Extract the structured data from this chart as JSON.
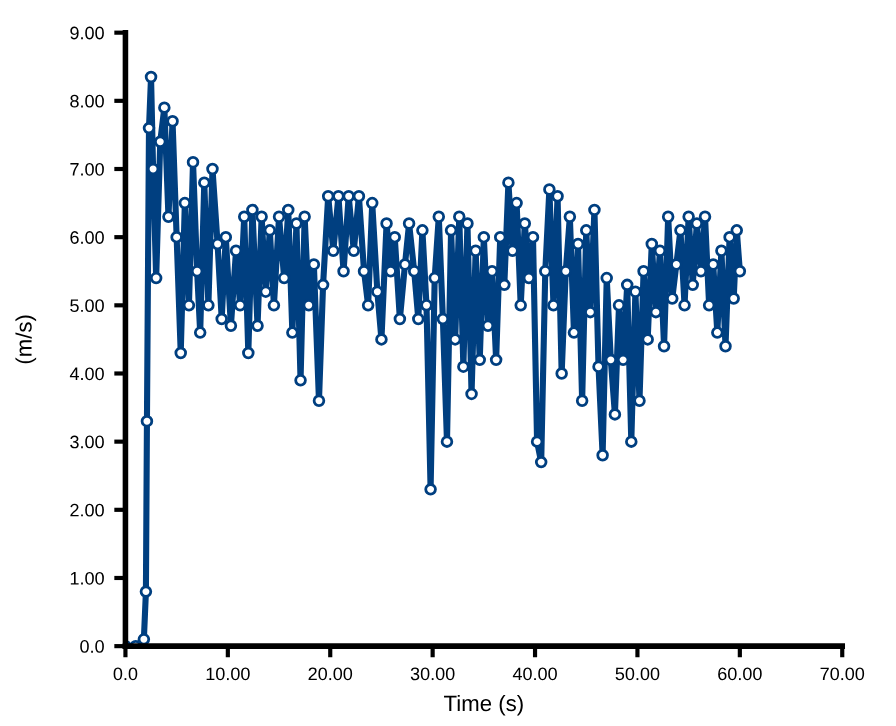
{
  "chart_data": {
    "type": "line",
    "xlabel": "Time (s)",
    "ylabel": "(m/s)",
    "xlim": [
      0,
      70
    ],
    "ylim": [
      0,
      9
    ],
    "xticks": [
      {
        "value": 0,
        "label": "0.0"
      },
      {
        "value": 10,
        "label": "10.00"
      },
      {
        "value": 20,
        "label": "20.00"
      },
      {
        "value": 30,
        "label": "30.00"
      },
      {
        "value": 40,
        "label": "40.00"
      },
      {
        "value": 50,
        "label": "50.00"
      },
      {
        "value": 60,
        "label": "60.00"
      },
      {
        "value": 70,
        "label": "70.00"
      }
    ],
    "yticks": [
      {
        "value": 0,
        "label": "0.0"
      },
      {
        "value": 1,
        "label": "1.00"
      },
      {
        "value": 2,
        "label": "2.00"
      },
      {
        "value": 3,
        "label": "3.00"
      },
      {
        "value": 4,
        "label": "4.00"
      },
      {
        "value": 5,
        "label": "5.00"
      },
      {
        "value": 6,
        "label": "6.00"
      },
      {
        "value": 7,
        "label": "7.00"
      },
      {
        "value": 8,
        "label": "8.00"
      },
      {
        "value": 9,
        "label": "9.00"
      }
    ],
    "grid": false,
    "legend": false,
    "marker": "circle",
    "line_style": "solid",
    "series": [
      {
        "color": "#003f80",
        "x": [
          0,
          1,
          1.8,
          2.0,
          2.1,
          2.3,
          2.5,
          2.7,
          3.0,
          3.4,
          3.8,
          4.2,
          4.6,
          5.0,
          5.4,
          5.8,
          6.2,
          6.6,
          7.0,
          7.3,
          7.7,
          8.1,
          8.5,
          9.0,
          9.4,
          9.8,
          10.3,
          10.8,
          11.2,
          11.6,
          12.0,
          12.4,
          12.9,
          13.3,
          13.7,
          14.1,
          14.5,
          15.0,
          15.5,
          15.9,
          16.3,
          16.7,
          17.1,
          17.5,
          17.9,
          18.4,
          18.9,
          19.3,
          19.8,
          20.3,
          20.8,
          21.3,
          21.8,
          22.3,
          22.8,
          23.3,
          23.7,
          24.1,
          24.6,
          25.0,
          25.5,
          25.9,
          26.3,
          26.8,
          27.3,
          27.7,
          28.2,
          28.6,
          29.0,
          29.4,
          29.8,
          30.2,
          30.6,
          31.0,
          31.4,
          31.8,
          32.2,
          32.6,
          33.0,
          33.4,
          33.8,
          34.2,
          34.6,
          35.0,
          35.4,
          35.8,
          36.2,
          36.6,
          37.0,
          37.4,
          37.8,
          38.2,
          38.6,
          39.0,
          39.4,
          39.8,
          40.2,
          40.6,
          41.0,
          41.4,
          41.8,
          42.2,
          42.6,
          43.0,
          43.4,
          43.8,
          44.2,
          44.6,
          45.0,
          45.4,
          45.8,
          46.2,
          46.6,
          47.0,
          47.4,
          47.8,
          48.2,
          48.6,
          49.0,
          49.4,
          49.8,
          50.2,
          50.6,
          51.0,
          51.4,
          51.8,
          52.2,
          52.6,
          53.0,
          53.4,
          53.8,
          54.2,
          54.6,
          55.0,
          55.4,
          55.8,
          56.2,
          56.6,
          57.0,
          57.4,
          57.8,
          58.2,
          58.6,
          59.0,
          59.4,
          59.7,
          60
        ],
        "values": [
          0,
          0,
          0.1,
          0.8,
          3.3,
          7.6,
          8.35,
          7.0,
          5.4,
          7.4,
          7.9,
          6.3,
          7.7,
          6.0,
          4.3,
          6.5,
          5.0,
          7.1,
          5.5,
          4.6,
          6.8,
          5.0,
          7.0,
          5.9,
          4.8,
          6.0,
          4.7,
          5.8,
          5.0,
          6.3,
          4.3,
          6.4,
          4.7,
          6.3,
          5.2,
          6.1,
          5.0,
          6.3,
          5.4,
          6.4,
          4.6,
          6.2,
          3.9,
          6.3,
          5.0,
          5.6,
          3.6,
          5.3,
          6.6,
          5.8,
          6.6,
          5.5,
          6.6,
          5.8,
          6.6,
          5.5,
          5.0,
          6.5,
          5.2,
          4.5,
          6.2,
          5.5,
          6.0,
          4.8,
          5.6,
          6.2,
          5.5,
          4.8,
          6.1,
          5.0,
          2.3,
          5.4,
          6.3,
          4.8,
          3.0,
          6.1,
          4.5,
          6.3,
          4.1,
          6.2,
          3.7,
          5.8,
          4.2,
          6.0,
          4.7,
          5.5,
          4.2,
          6.0,
          5.3,
          6.8,
          5.8,
          6.5,
          5.0,
          6.2,
          5.4,
          6.0,
          3.0,
          2.7,
          5.5,
          6.7,
          5.0,
          6.6,
          4.0,
          5.5,
          6.3,
          4.6,
          5.9,
          3.6,
          6.1,
          4.9,
          6.4,
          4.1,
          2.8,
          5.4,
          4.2,
          3.4,
          5.0,
          4.2,
          5.3,
          3.0,
          5.2,
          3.6,
          5.5,
          4.5,
          5.9,
          4.9,
          5.8,
          4.4,
          6.3,
          5.1,
          5.6,
          6.1,
          5.0,
          6.3,
          5.3,
          6.2,
          5.5,
          6.3,
          5.0,
          5.6,
          4.6,
          5.8,
          4.4,
          6.0,
          5.1,
          6.1,
          5.5
        ]
      }
    ]
  }
}
